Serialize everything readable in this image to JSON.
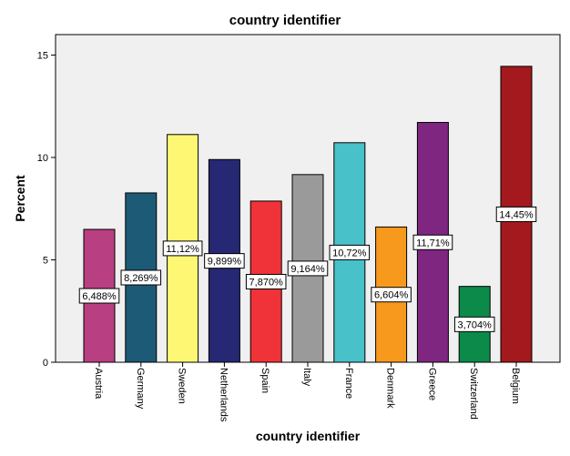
{
  "chart_data": {
    "type": "bar",
    "title": "country identifier",
    "xlabel": "country identifier",
    "ylabel": "Percent",
    "ylim": [
      0,
      16
    ],
    "yticks": [
      0,
      5,
      10,
      15
    ],
    "grid": false,
    "categories": [
      "Austria",
      "Germany",
      "Sweden",
      "Netherlands",
      "Spain",
      "Italy",
      "France",
      "Denmark",
      "Greece",
      "Switzerland",
      "Belgium"
    ],
    "values": [
      6.488,
      8.269,
      11.12,
      9.899,
      7.87,
      9.164,
      10.72,
      6.604,
      11.71,
      3.704,
      14.45
    ],
    "data_labels": [
      "6,488%",
      "8,269%",
      "11,12%",
      "9,899%",
      "7,870%",
      "9,164%",
      "10,72%",
      "6,604%",
      "11,71%",
      "3,704%",
      "14,45%"
    ],
    "colors": [
      "#b83f81",
      "#1d5a75",
      "#fdf774",
      "#262873",
      "#ef3339",
      "#9a9a9a",
      "#49c1c9",
      "#f7991d",
      "#7e2680",
      "#0b8a4a",
      "#a3191d"
    ],
    "plot_background": "#f0f0f0"
  }
}
